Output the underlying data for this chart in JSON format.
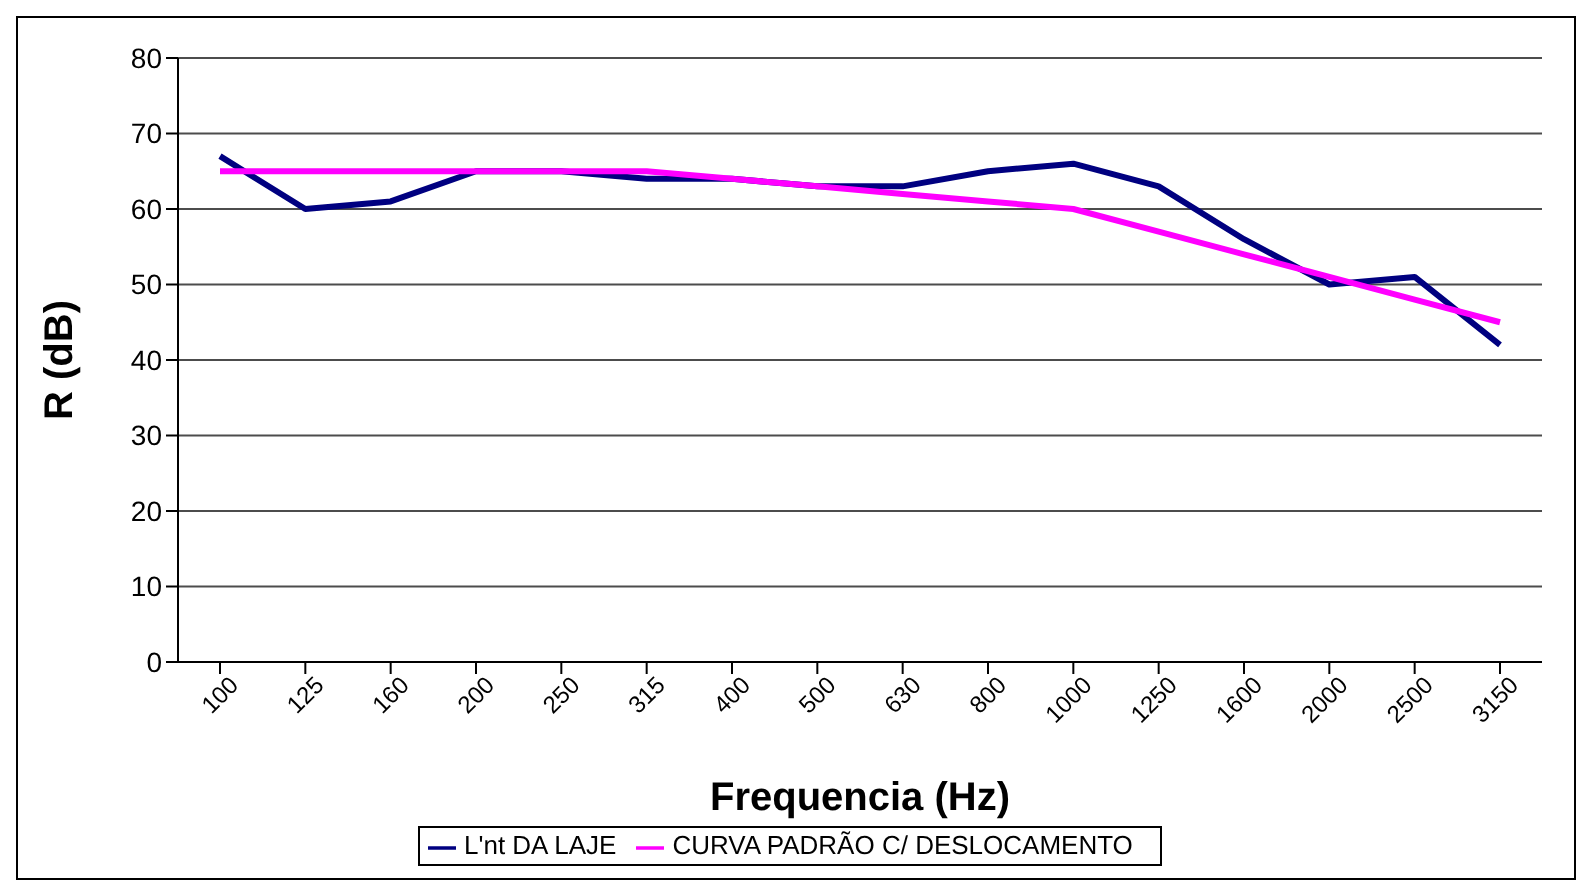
{
  "chart_data": {
    "type": "line",
    "xlabel": "Frequencia (Hz)",
    "ylabel": "R (dB)",
    "categories": [
      "100",
      "125",
      "160",
      "200",
      "250",
      "315",
      "400",
      "500",
      "630",
      "800",
      "1000",
      "1250",
      "1600",
      "2000",
      "2500",
      "3150"
    ],
    "series": [
      {
        "name": "L'nt DA LAJE",
        "color": "#000080",
        "values": [
          67,
          60,
          61,
          65,
          65,
          64,
          64,
          63,
          63,
          65,
          66,
          63,
          56,
          50,
          51,
          42
        ]
      },
      {
        "name": "CURVA PADRÃO C/ DESLOCAMENTO",
        "color": "#ff00ff",
        "values": [
          65,
          65,
          65,
          65,
          65,
          65,
          64,
          63,
          62,
          61,
          60,
          57,
          54,
          51,
          48,
          45
        ]
      }
    ],
    "ylim": [
      0,
      80
    ],
    "yticks": [
      0,
      10,
      20,
      30,
      40,
      50,
      60,
      70,
      80
    ],
    "grid": "y",
    "legend": "bottom",
    "marker": "none",
    "line_style": "solid"
  }
}
